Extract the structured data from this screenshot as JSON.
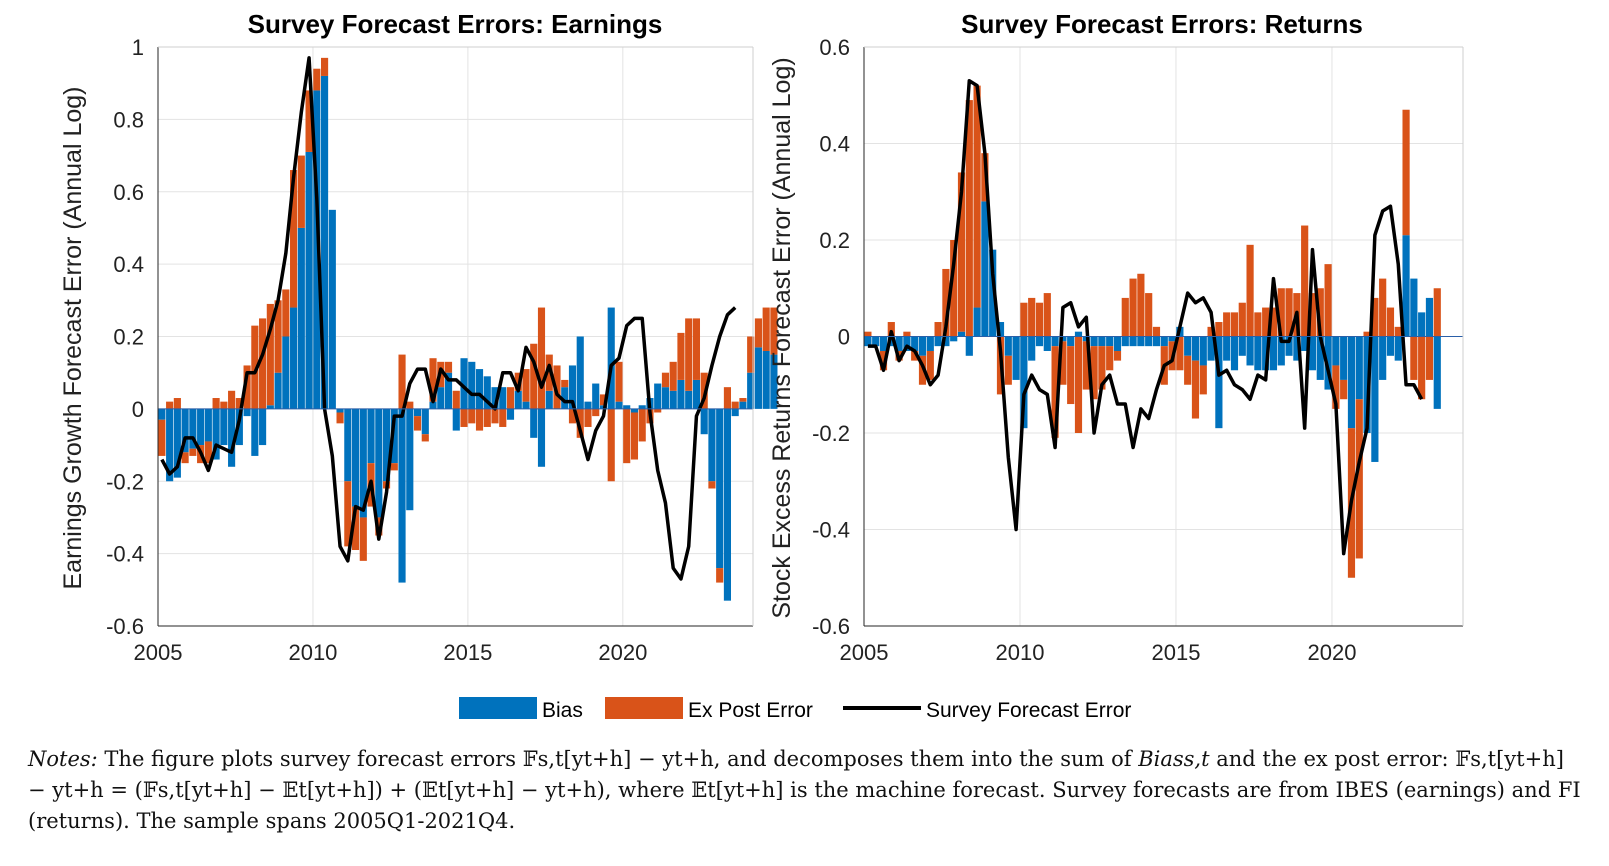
{
  "chart_data": [
    {
      "type": "bar",
      "title": "Survey Forecast Errors: Earnings",
      "ylabel": "Earnings Growth Forecast Error (Annual Log)",
      "xlabel": "",
      "xlim": [
        2005,
        2024.2
      ],
      "ylim": [
        -0.6,
        1.0
      ],
      "xticks": [
        "2005",
        "2010",
        "2015",
        "2020"
      ],
      "yticks": [
        "-0.6",
        "-0.4",
        "-0.2",
        "0",
        "0.2",
        "0.4",
        "0.6",
        "0.8",
        "1"
      ],
      "grid": true,
      "x_start": 2005.0,
      "x_step": 0.25,
      "series": [
        {
          "name": "Bias",
          "color": "#0072BD",
          "values": [
            -0.03,
            -0.2,
            -0.19,
            -0.12,
            -0.11,
            -0.1,
            -0.09,
            -0.14,
            -0.1,
            -0.16,
            -0.1,
            -0.02,
            -0.13,
            -0.1,
            0.01,
            0.1,
            0.2,
            0.28,
            0.5,
            0.71,
            0.88,
            0.92,
            0.55,
            -0.01,
            -0.2,
            -0.27,
            -0.3,
            -0.15,
            -0.3,
            -0.2,
            -0.15,
            -0.48,
            -0.28,
            -0.02,
            -0.07,
            0.02,
            0.06,
            0.1,
            -0.06,
            0.14,
            0.13,
            0.11,
            0.09,
            0.06,
            0.06,
            -0.03,
            0.05,
            0.02,
            -0.08,
            -0.16,
            0.05,
            0.0,
            0.06,
            0.12,
            0.2,
            0.02,
            0.07,
            0.01,
            0.28,
            0.02,
            0.01,
            -0.01,
            0.01,
            0.03,
            0.07,
            0.06,
            0.05,
            0.08,
            0.05,
            0.08,
            -0.07,
            -0.2,
            -0.44,
            -0.53,
            -0.02,
            0.02,
            0.1,
            0.17,
            0.16,
            0.15
          ]
        },
        {
          "name": "Ex Post Error",
          "color": "#D95319",
          "values": [
            -0.1,
            0.02,
            0.03,
            -0.03,
            -0.02,
            -0.05,
            -0.06,
            0.03,
            0.02,
            0.05,
            0.03,
            0.12,
            0.23,
            0.25,
            0.28,
            0.2,
            0.13,
            0.38,
            0.2,
            0.17,
            0.06,
            0.05,
            0.0,
            -0.03,
            -0.18,
            -0.12,
            -0.12,
            -0.12,
            -0.05,
            -0.02,
            -0.02,
            0.15,
            0.02,
            -0.04,
            -0.02,
            0.12,
            0.07,
            0.03,
            0.05,
            -0.05,
            -0.04,
            -0.06,
            -0.05,
            -0.04,
            -0.05,
            0.06,
            0.05,
            0.09,
            0.18,
            0.28,
            0.1,
            0.12,
            0.02,
            -0.04,
            -0.08,
            -0.05,
            -0.02,
            0.03,
            -0.2,
            0.11,
            -0.15,
            -0.13,
            -0.09,
            -0.04,
            -0.01,
            0.04,
            0.08,
            0.13,
            0.2,
            0.17,
            0.1,
            -0.02,
            -0.04,
            0.06,
            0.02,
            0.01,
            0.1,
            0.08,
            0.12,
            0.13
          ]
        },
        {
          "name": "Survey Forecast Error",
          "color": "#000000",
          "values": [
            -0.14,
            -0.18,
            -0.16,
            -0.08,
            -0.08,
            -0.12,
            -0.17,
            -0.1,
            -0.11,
            -0.12,
            -0.03,
            0.1,
            0.1,
            0.15,
            0.22,
            0.3,
            0.43,
            0.64,
            0.82,
            0.97,
            0.58,
            0.0,
            -0.13,
            -0.38,
            -0.42,
            -0.27,
            -0.28,
            -0.2,
            -0.36,
            -0.23,
            -0.02,
            -0.02,
            0.07,
            0.11,
            0.11,
            0.02,
            0.11,
            0.08,
            0.08,
            0.06,
            0.04,
            0.04,
            0.02,
            0.0,
            0.1,
            0.1,
            0.05,
            0.17,
            0.13,
            0.06,
            0.12,
            0.04,
            0.02,
            0.02,
            -0.06,
            -0.14,
            -0.06,
            -0.02,
            0.12,
            0.14,
            0.23,
            0.25,
            0.25,
            -0.01,
            -0.17,
            -0.26,
            -0.44,
            -0.47,
            -0.38,
            -0.02,
            0.03,
            0.12,
            0.2,
            0.26,
            0.28
          ]
        }
      ]
    },
    {
      "type": "bar",
      "title": "Survey Forecast Errors: Returns",
      "ylabel": "Stock Excess Returns Forecast Error (Annual Log)",
      "xlabel": "",
      "xlim": [
        2005,
        2024.2
      ],
      "ylim": [
        -0.6,
        0.6
      ],
      "xticks": [
        "2005",
        "2010",
        "2015",
        "2020"
      ],
      "yticks": [
        "-0.6",
        "-0.4",
        "-0.2",
        "0",
        "0.2",
        "0.4",
        "0.6"
      ],
      "grid": true,
      "x_start": 2005.0,
      "x_step": 0.25,
      "series": [
        {
          "name": "Bias",
          "color": "#0072BD",
          "values": [
            -0.02,
            -0.02,
            -0.03,
            -0.02,
            -0.03,
            -0.03,
            -0.03,
            -0.04,
            -0.03,
            -0.02,
            -0.02,
            -0.01,
            0.01,
            -0.04,
            0.06,
            0.28,
            0.18,
            0.03,
            -0.04,
            -0.09,
            -0.19,
            -0.05,
            -0.02,
            -0.03,
            -0.02,
            -0.01,
            -0.02,
            0.01,
            -0.01,
            -0.02,
            -0.02,
            -0.02,
            -0.03,
            -0.02,
            -0.02,
            -0.02,
            -0.02,
            -0.02,
            -0.02,
            -0.01,
            0.02,
            -0.04,
            -0.05,
            -0.06,
            -0.05,
            -0.19,
            -0.05,
            -0.07,
            -0.04,
            -0.06,
            -0.07,
            -0.07,
            -0.07,
            -0.06,
            -0.04,
            -0.05,
            -0.03,
            -0.07,
            -0.09,
            -0.11,
            -0.06,
            -0.09,
            -0.19,
            -0.13,
            -0.2,
            -0.26,
            -0.09,
            -0.04,
            -0.05,
            0.21,
            0.12,
            0.05,
            0.08,
            -0.15
          ]
        },
        {
          "name": "Ex Post Error",
          "color": "#D95319",
          "values": [
            0.01,
            0.0,
            -0.04,
            0.03,
            -0.02,
            0.01,
            -0.02,
            -0.06,
            -0.06,
            0.03,
            0.14,
            0.2,
            0.33,
            0.49,
            0.46,
            0.1,
            0.0,
            -0.12,
            -0.06,
            0.0,
            0.07,
            0.08,
            0.07,
            0.09,
            -0.19,
            -0.09,
            -0.12,
            -0.2,
            -0.1,
            -0.11,
            -0.09,
            -0.05,
            -0.02,
            0.08,
            0.12,
            0.13,
            0.09,
            0.02,
            -0.08,
            -0.06,
            -0.07,
            -0.06,
            -0.12,
            -0.06,
            0.02,
            0.03,
            0.05,
            0.05,
            0.07,
            0.19,
            0.05,
            0.06,
            0.06,
            0.1,
            0.1,
            0.09,
            0.23,
            0.09,
            0.1,
            0.15,
            -0.09,
            -0.04,
            -0.31,
            -0.33,
            0.01,
            0.08,
            0.12,
            0.06,
            0.02,
            0.26,
            -0.09,
            -0.13,
            -0.09,
            0.1
          ]
        },
        {
          "name": "Survey Forecast Error",
          "color": "#000000",
          "values": [
            -0.02,
            -0.02,
            -0.07,
            0.01,
            -0.05,
            -0.02,
            -0.03,
            -0.06,
            -0.1,
            -0.08,
            0.02,
            0.15,
            0.3,
            0.53,
            0.52,
            0.38,
            0.13,
            -0.03,
            -0.25,
            -0.4,
            -0.12,
            -0.08,
            -0.11,
            -0.12,
            -0.23,
            0.06,
            0.07,
            0.02,
            0.04,
            -0.2,
            -0.1,
            -0.08,
            -0.14,
            -0.14,
            -0.23,
            -0.15,
            -0.17,
            -0.11,
            -0.06,
            -0.05,
            0.02,
            0.09,
            0.07,
            0.08,
            0.05,
            -0.08,
            -0.07,
            -0.1,
            -0.11,
            -0.13,
            -0.08,
            -0.09,
            0.12,
            -0.01,
            -0.01,
            0.05,
            -0.19,
            0.18,
            0.0,
            -0.07,
            -0.14,
            -0.45,
            -0.34,
            -0.26,
            -0.19,
            0.21,
            0.26,
            0.27,
            0.15,
            -0.1,
            -0.1,
            -0.13
          ]
        }
      ]
    }
  ],
  "legend": {
    "items": [
      {
        "label": "Bias",
        "color": "#0072BD"
      },
      {
        "label": "Ex Post Error",
        "color": "#D95319"
      },
      {
        "label": "Survey Forecast Error",
        "color": "#000000"
      }
    ]
  },
  "notes": {
    "label": "Notes:",
    "line1_a": " The figure plots survey forecast errors ",
    "line1_b": ", and decomposes them into the sum of ",
    "line1_c": " and the ex post error: ",
    "line2_b": ", where ",
    "line2_c": " is the machine forecast. Survey forecasts are from IBES (earnings) and FI (returns). The sample spans 2005Q1-2021Q4.",
    "formula_a": "𝔽s,t[yt+h] − yt+h",
    "formula_b": "Biass,t",
    "formula_c": "𝔽s,t[yt+h] − yt+h = (𝔽s,t[yt+h] − 𝔼t[yt+h]) + (𝔼t[yt+h] − yt+h)",
    "formula_d": "𝔼t[yt+h]"
  }
}
